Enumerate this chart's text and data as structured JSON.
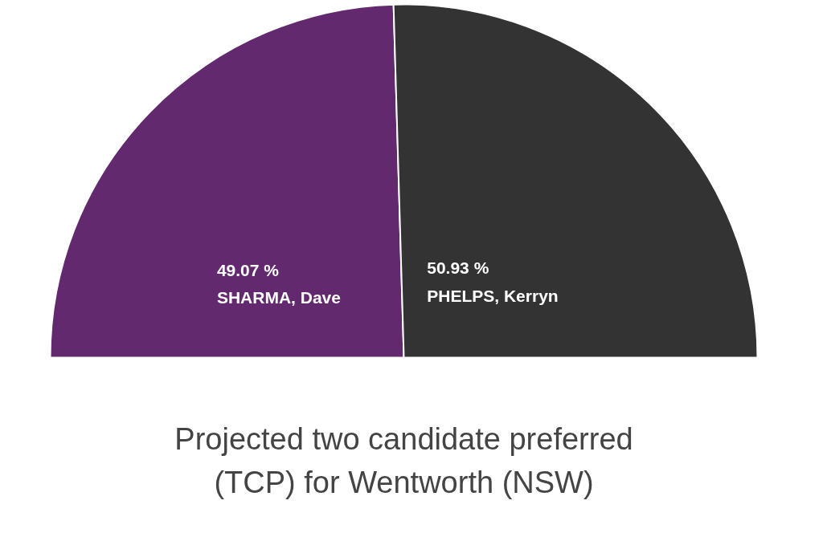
{
  "chart_data": {
    "type": "pie",
    "title": "Projected two candidate preferred\n(TCP) for Wentworth (NSW)",
    "categories": [
      "SHARMA, Dave",
      "PHELPS, Kerryn"
    ],
    "values": [
      49.07,
      50.93
    ],
    "value_labels": [
      "49.07 %",
      "50.93 %"
    ],
    "colors": [
      "#62296f",
      "#333333"
    ]
  }
}
